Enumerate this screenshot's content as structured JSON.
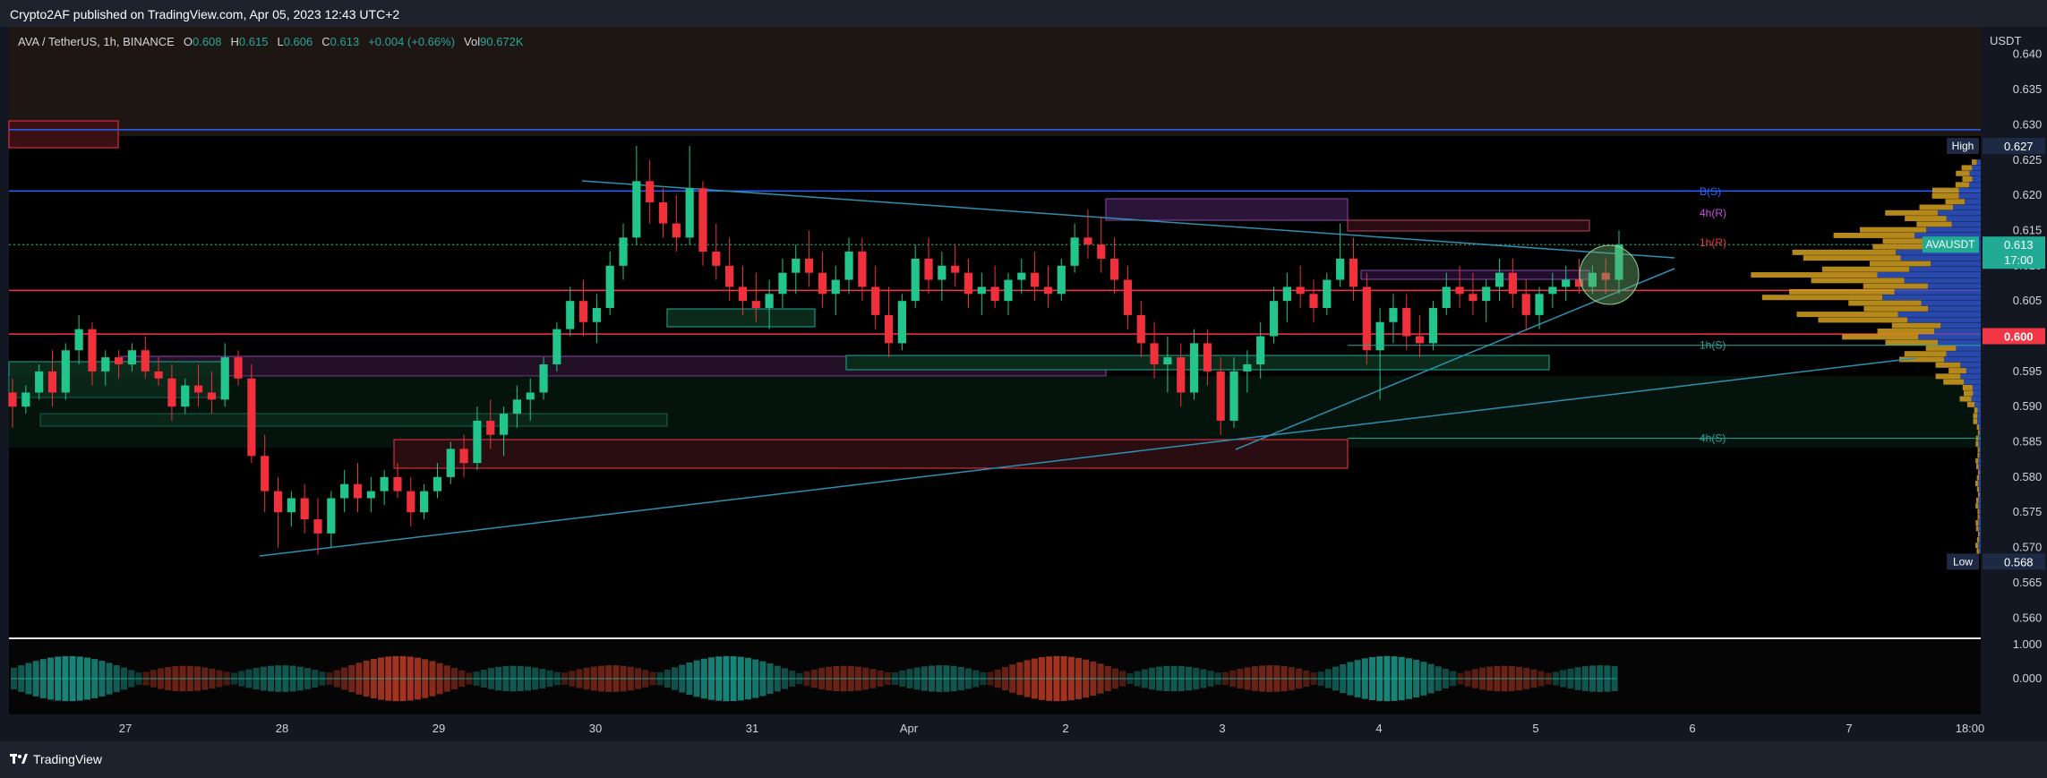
{
  "header": {
    "publisher": "Crypto2AF published on TradingView.com, Apr 05, 2023 12:43 UTC+2"
  },
  "legend": {
    "symbol": "AVA / TetherUS, 1h, BINANCE",
    "open_label": "O",
    "open": "0.608",
    "high_label": "H",
    "high": "0.615",
    "low_label": "L",
    "low": "0.606",
    "close_label": "C",
    "close": "0.613",
    "change": "+0.004 (+0.66%)",
    "vol_label": "Vol",
    "vol": "90.672K"
  },
  "footer": {
    "brand": "TradingView"
  },
  "colors": {
    "up": "#22c58b",
    "down": "#f0303a",
    "bg": "#000000",
    "resistance": "#f23645",
    "support": "#22ab94",
    "trend": "#2e8fb0"
  },
  "chart_data": {
    "type": "candlestick",
    "symbol": "AVAUSDT",
    "currency_label": "USDT",
    "interval": "1h",
    "ylim": [
      0.558,
      0.642
    ],
    "y_ticks": [
      "0.560",
      "0.565",
      "0.570",
      "0.575",
      "0.580",
      "0.585",
      "0.590",
      "0.595",
      "0.600",
      "0.605",
      "0.610",
      "0.615",
      "0.620",
      "0.625",
      "0.630",
      "0.635",
      "0.640"
    ],
    "x_ticks": [
      "27",
      "28",
      "29",
      "30",
      "31",
      "Apr",
      "2",
      "3",
      "4",
      "5",
      "6",
      "7",
      "18:00"
    ],
    "price_tags": [
      {
        "label": "High",
        "value": "0.627",
        "price": 0.627
      },
      {
        "label": "AVAUSDT",
        "value": "0.613",
        "extra": "17:00",
        "price": 0.613
      },
      {
        "label": "",
        "value": "0.600",
        "price": 0.6
      },
      {
        "label": "Low",
        "value": "0.568",
        "price": 0.568
      }
    ],
    "levels": [
      {
        "label": "B(S)",
        "price": 0.6205,
        "color": "#2962ff"
      },
      {
        "label": "4h(R)",
        "price": 0.6175,
        "color": "#c850e0"
      },
      {
        "label": "1h(R)",
        "price": 0.6133,
        "color": "#f23645"
      },
      {
        "label": "1h(S)",
        "price": 0.5987,
        "color": "#26a69a"
      },
      {
        "label": "4h(S)",
        "price": 0.5855,
        "color": "#26a69a"
      }
    ],
    "horizontal_lines": [
      0.6293,
      0.6206,
      0.6065,
      0.6003
    ],
    "oscillator": {
      "ticks": [
        "1.000",
        "0.000"
      ]
    },
    "candles": [
      [
        0.592,
        0.594,
        0.587,
        0.59
      ],
      [
        0.59,
        0.593,
        0.589,
        0.592
      ],
      [
        0.592,
        0.596,
        0.591,
        0.595
      ],
      [
        0.595,
        0.598,
        0.59,
        0.592
      ],
      [
        0.592,
        0.599,
        0.591,
        0.598
      ],
      [
        0.598,
        0.603,
        0.596,
        0.601
      ],
      [
        0.601,
        0.602,
        0.593,
        0.595
      ],
      [
        0.595,
        0.598,
        0.593,
        0.597
      ],
      [
        0.597,
        0.598,
        0.594,
        0.596
      ],
      [
        0.596,
        0.599,
        0.595,
        0.598
      ],
      [
        0.598,
        0.6,
        0.594,
        0.595
      ],
      [
        0.595,
        0.597,
        0.593,
        0.594
      ],
      [
        0.594,
        0.596,
        0.588,
        0.59
      ],
      [
        0.59,
        0.594,
        0.589,
        0.593
      ],
      [
        0.593,
        0.596,
        0.59,
        0.592
      ],
      [
        0.592,
        0.595,
        0.589,
        0.591
      ],
      [
        0.591,
        0.599,
        0.59,
        0.597
      ],
      [
        0.597,
        0.598,
        0.593,
        0.594
      ],
      [
        0.594,
        0.596,
        0.582,
        0.583
      ],
      [
        0.583,
        0.586,
        0.575,
        0.578
      ],
      [
        0.578,
        0.58,
        0.57,
        0.575
      ],
      [
        0.575,
        0.578,
        0.573,
        0.577
      ],
      [
        0.577,
        0.579,
        0.572,
        0.574
      ],
      [
        0.574,
        0.577,
        0.569,
        0.572
      ],
      [
        0.572,
        0.578,
        0.57,
        0.577
      ],
      [
        0.577,
        0.581,
        0.575,
        0.579
      ],
      [
        0.579,
        0.582,
        0.575,
        0.577
      ],
      [
        0.577,
        0.58,
        0.575,
        0.578
      ],
      [
        0.578,
        0.581,
        0.576,
        0.58
      ],
      [
        0.58,
        0.582,
        0.577,
        0.578
      ],
      [
        0.578,
        0.58,
        0.573,
        0.575
      ],
      [
        0.575,
        0.579,
        0.574,
        0.578
      ],
      [
        0.578,
        0.582,
        0.577,
        0.58
      ],
      [
        0.58,
        0.585,
        0.579,
        0.584
      ],
      [
        0.584,
        0.586,
        0.58,
        0.582
      ],
      [
        0.582,
        0.59,
        0.581,
        0.588
      ],
      [
        0.588,
        0.591,
        0.584,
        0.586
      ],
      [
        0.586,
        0.59,
        0.583,
        0.589
      ],
      [
        0.589,
        0.593,
        0.587,
        0.591
      ],
      [
        0.591,
        0.594,
        0.588,
        0.592
      ],
      [
        0.592,
        0.597,
        0.591,
        0.596
      ],
      [
        0.596,
        0.602,
        0.595,
        0.601
      ],
      [
        0.601,
        0.607,
        0.6,
        0.605
      ],
      [
        0.605,
        0.608,
        0.6,
        0.602
      ],
      [
        0.602,
        0.606,
        0.599,
        0.604
      ],
      [
        0.604,
        0.612,
        0.603,
        0.61
      ],
      [
        0.61,
        0.616,
        0.608,
        0.614
      ],
      [
        0.614,
        0.627,
        0.613,
        0.622
      ],
      [
        0.622,
        0.625,
        0.616,
        0.619
      ],
      [
        0.619,
        0.621,
        0.614,
        0.616
      ],
      [
        0.616,
        0.62,
        0.612,
        0.614
      ],
      [
        0.614,
        0.627,
        0.613,
        0.621
      ],
      [
        0.621,
        0.622,
        0.61,
        0.612
      ],
      [
        0.612,
        0.616,
        0.608,
        0.61
      ],
      [
        0.61,
        0.614,
        0.605,
        0.607
      ],
      [
        0.607,
        0.61,
        0.603,
        0.605
      ],
      [
        0.605,
        0.609,
        0.602,
        0.604
      ],
      [
        0.604,
        0.608,
        0.601,
        0.606
      ],
      [
        0.606,
        0.611,
        0.604,
        0.609
      ],
      [
        0.609,
        0.613,
        0.606,
        0.611
      ],
      [
        0.611,
        0.615,
        0.607,
        0.609
      ],
      [
        0.609,
        0.612,
        0.604,
        0.606
      ],
      [
        0.606,
        0.61,
        0.603,
        0.608
      ],
      [
        0.608,
        0.614,
        0.606,
        0.612
      ],
      [
        0.612,
        0.614,
        0.605,
        0.607
      ],
      [
        0.607,
        0.61,
        0.601,
        0.603
      ],
      [
        0.603,
        0.607,
        0.597,
        0.599
      ],
      [
        0.599,
        0.606,
        0.598,
        0.605
      ],
      [
        0.605,
        0.613,
        0.604,
        0.611
      ],
      [
        0.611,
        0.614,
        0.606,
        0.608
      ],
      [
        0.608,
        0.612,
        0.605,
        0.61
      ],
      [
        0.61,
        0.613,
        0.607,
        0.609
      ],
      [
        0.609,
        0.611,
        0.604,
        0.606
      ],
      [
        0.606,
        0.609,
        0.603,
        0.607
      ],
      [
        0.607,
        0.61,
        0.604,
        0.605
      ],
      [
        0.605,
        0.609,
        0.603,
        0.608
      ],
      [
        0.608,
        0.611,
        0.606,
        0.609
      ],
      [
        0.609,
        0.612,
        0.605,
        0.607
      ],
      [
        0.607,
        0.61,
        0.604,
        0.606
      ],
      [
        0.606,
        0.611,
        0.605,
        0.61
      ],
      [
        0.61,
        0.616,
        0.609,
        0.614
      ],
      [
        0.614,
        0.618,
        0.611,
        0.613
      ],
      [
        0.613,
        0.617,
        0.609,
        0.611
      ],
      [
        0.611,
        0.614,
        0.606,
        0.608
      ],
      [
        0.608,
        0.61,
        0.601,
        0.603
      ],
      [
        0.603,
        0.605,
        0.597,
        0.599
      ],
      [
        0.599,
        0.602,
        0.594,
        0.596
      ],
      [
        0.596,
        0.6,
        0.592,
        0.597
      ],
      [
        0.597,
        0.599,
        0.59,
        0.592
      ],
      [
        0.592,
        0.601,
        0.591,
        0.599
      ],
      [
        0.599,
        0.601,
        0.593,
        0.595
      ],
      [
        0.595,
        0.597,
        0.586,
        0.588
      ],
      [
        0.588,
        0.597,
        0.587,
        0.595
      ],
      [
        0.595,
        0.598,
        0.592,
        0.596
      ],
      [
        0.596,
        0.602,
        0.594,
        0.6
      ],
      [
        0.6,
        0.607,
        0.599,
        0.605
      ],
      [
        0.605,
        0.609,
        0.602,
        0.607
      ],
      [
        0.607,
        0.61,
        0.604,
        0.606
      ],
      [
        0.606,
        0.608,
        0.602,
        0.604
      ],
      [
        0.604,
        0.609,
        0.603,
        0.608
      ],
      [
        0.608,
        0.616,
        0.607,
        0.611
      ],
      [
        0.611,
        0.614,
        0.605,
        0.607
      ],
      [
        0.607,
        0.609,
        0.596,
        0.598
      ],
      [
        0.598,
        0.604,
        0.591,
        0.602
      ],
      [
        0.602,
        0.606,
        0.599,
        0.604
      ],
      [
        0.604,
        0.606,
        0.598,
        0.6
      ],
      [
        0.6,
        0.603,
        0.597,
        0.599
      ],
      [
        0.599,
        0.605,
        0.598,
        0.604
      ],
      [
        0.604,
        0.609,
        0.603,
        0.607
      ],
      [
        0.607,
        0.61,
        0.604,
        0.606
      ],
      [
        0.606,
        0.609,
        0.603,
        0.605
      ],
      [
        0.605,
        0.608,
        0.602,
        0.607
      ],
      [
        0.607,
        0.611,
        0.605,
        0.609
      ],
      [
        0.609,
        0.611,
        0.604,
        0.606
      ],
      [
        0.606,
        0.608,
        0.601,
        0.603
      ],
      [
        0.603,
        0.607,
        0.601,
        0.606
      ],
      [
        0.606,
        0.609,
        0.604,
        0.607
      ],
      [
        0.607,
        0.61,
        0.605,
        0.608
      ],
      [
        0.608,
        0.611,
        0.606,
        0.607
      ],
      [
        0.607,
        0.61,
        0.606,
        0.609
      ],
      [
        0.609,
        0.611,
        0.606,
        0.608
      ],
      [
        0.608,
        0.615,
        0.606,
        0.613
      ]
    ]
  }
}
